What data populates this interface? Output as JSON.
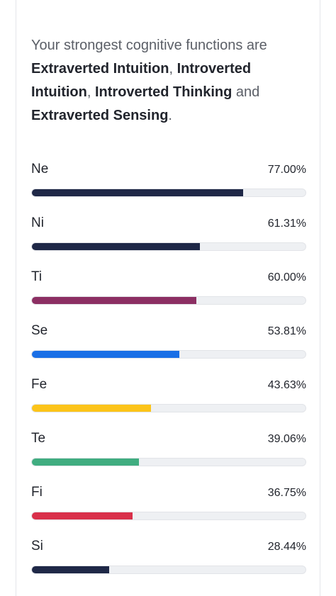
{
  "summary": {
    "intro": "Your strongest cognitive functions are",
    "functions": [
      "Extraverted Intuition",
      "Introverted Intuition",
      "Introverted Thinking",
      "Extraverted Sensing"
    ],
    "sep1": ", ",
    "sep2": ", ",
    "conj": " and ",
    "end": "."
  },
  "functions": [
    {
      "name": "Ne",
      "percent_label": "77.00%",
      "value": 77.0,
      "color": "#1f2847"
    },
    {
      "name": "Ni",
      "percent_label": "61.31%",
      "value": 61.31,
      "color": "#1f2847"
    },
    {
      "name": "Ti",
      "percent_label": "60.00%",
      "value": 60.0,
      "color": "#8c2f63"
    },
    {
      "name": "Se",
      "percent_label": "53.81%",
      "value": 53.81,
      "color": "#1a6fe6"
    },
    {
      "name": "Fe",
      "percent_label": "43.63%",
      "value": 43.63,
      "color": "#fcc419"
    },
    {
      "name": "Te",
      "percent_label": "39.06%",
      "value": 39.06,
      "color": "#40ad80"
    },
    {
      "name": "Fi",
      "percent_label": "36.75%",
      "value": 36.75,
      "color": "#d9304a"
    },
    {
      "name": "Si",
      "percent_label": "28.44%",
      "value": 28.44,
      "color": "#1f2847"
    }
  ]
}
